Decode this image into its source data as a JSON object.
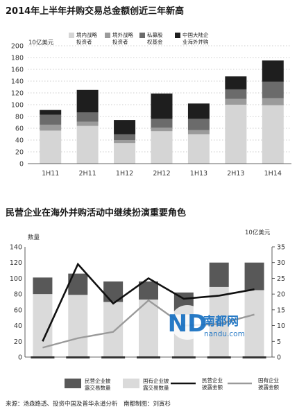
{
  "colors": {
    "c1": "#d5d5d5",
    "c2": "#9b9b9b",
    "c3": "#6b6b6b",
    "c4": "#1e1e1e",
    "bar_dark": "#585858",
    "bar_light": "#dadada",
    "line_dark": "#111111",
    "line_gray": "#9a9a9a"
  },
  "chart_data": [
    {
      "type": "bar",
      "stacked": true,
      "title": "2014年上半年并购交易总金额创近三年新高",
      "unit": "10亿美元",
      "categories": [
        "1H11",
        "2H11",
        "1H12",
        "2H12",
        "1H13",
        "2H13",
        "1H14"
      ],
      "ylim": [
        0,
        200
      ],
      "yticks": [
        0,
        20,
        40,
        60,
        80,
        100,
        120,
        140,
        160,
        180,
        200
      ],
      "grid": true,
      "legend_position": "top-right",
      "series": [
        {
          "name": "境内战略投资者",
          "color_key": "c1",
          "values": [
            56,
            64,
            35,
            55,
            50,
            100,
            99
          ]
        },
        {
          "name": "境外战略投资者",
          "color_key": "c2",
          "values": [
            10,
            7,
            5,
            6,
            7,
            10,
            12
          ]
        },
        {
          "name": "私募股权基金",
          "color_key": "c3",
          "values": [
            17,
            16,
            10,
            15,
            19,
            16,
            28
          ]
        },
        {
          "name": "中国大陆企业海外并购",
          "color_key": "c4",
          "values": [
            8,
            38,
            24,
            43,
            26,
            22,
            36
          ]
        }
      ]
    },
    {
      "type": "bar+line",
      "title": "民营企业在海外并购活动中继续扮演重要角色",
      "left_axis_label": "数量",
      "right_axis_label": "10亿美元",
      "categories": [
        "1H11",
        "2H11",
        "1H12",
        "2H12",
        "1H13",
        "2H13",
        "1H14"
      ],
      "ylim_left": [
        0,
        140
      ],
      "yticks_left": [
        0,
        20,
        40,
        60,
        80,
        100,
        120,
        140
      ],
      "ylim_right": [
        0,
        35
      ],
      "yticks_right": [
        0,
        5,
        10,
        15,
        20,
        25,
        30,
        35
      ],
      "legend_position": "bottom",
      "bar_series": [
        {
          "name": "国有企业披露交易数量",
          "color_key": "bar_light",
          "values": [
            80,
            79,
            70,
            73,
            54,
            89,
            85
          ]
        },
        {
          "name": "民营企业披露交易数量",
          "color_key": "bar_dark",
          "values": [
            21,
            27,
            26,
            23,
            28,
            31,
            35
          ]
        }
      ],
      "line_series": [
        {
          "name": "民营企业披露金额",
          "color_key": "line_dark",
          "axis": "right",
          "width": 2.6,
          "values": [
            5,
            29.5,
            17,
            25,
            18.5,
            19.5,
            21.5
          ]
        },
        {
          "name": "国有企业披露金额",
          "color_key": "line_gray",
          "axis": "right",
          "width": 2.4,
          "values": [
            3,
            6,
            8,
            18,
            10,
            10.5,
            13.5
          ]
        }
      ]
    }
  ],
  "source_note": "来源：汤森路透、投资中国及普华永道分析　南都制图：刘寅杉",
  "watermark": {
    "logo_letters": "ND",
    "name": "南都网",
    "url": "nandu.com"
  }
}
